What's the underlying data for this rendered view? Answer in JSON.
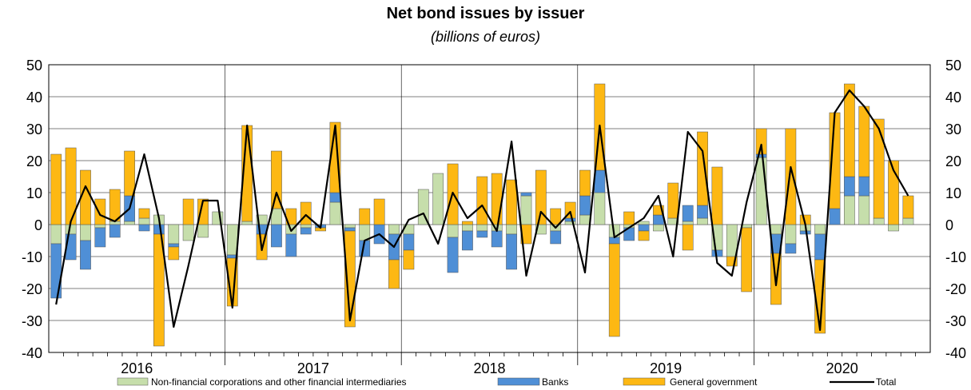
{
  "chart_data": {
    "type": "bar",
    "title": "Net bond issues by issuer",
    "subtitle": "(billions of euros)",
    "ylim": [
      -40,
      50
    ],
    "yticks": [
      -40,
      -30,
      -20,
      -10,
      0,
      10,
      20,
      30,
      40,
      50
    ],
    "year_labels": [
      "2016",
      "2017",
      "2018",
      "2019",
      "2020"
    ],
    "months_per_year": 12,
    "grid": true,
    "legend_position": "bottom",
    "stacked": true,
    "series": [
      {
        "name": "Non-financial corporations and other financial intermediaries",
        "color": "#c6deab",
        "values": [
          -6,
          -3,
          -5,
          -1,
          1,
          1,
          2,
          3,
          -6,
          -5,
          -4,
          4,
          -9.5,
          1,
          3,
          5,
          -3,
          -1,
          0,
          7,
          -1,
          -5,
          0,
          -3,
          -3,
          11,
          16,
          -4,
          -2,
          -2,
          -2,
          -3,
          9,
          -3,
          -2,
          1,
          3,
          10,
          -4,
          -1,
          1,
          -2,
          2,
          1,
          2,
          -8,
          -10,
          -1,
          21,
          -3,
          -6,
          -2,
          -3,
          0,
          9,
          9,
          2,
          -2,
          2
        ]
      },
      {
        "name": "Banks",
        "color": "#4f8fd6",
        "values": [
          -17,
          -8,
          -9,
          -6,
          -4,
          8,
          -2,
          -3,
          -1,
          0,
          0,
          0,
          -1,
          0,
          -3,
          -7,
          -7,
          -2,
          -1,
          3,
          -1,
          -5,
          -6,
          -8,
          -5,
          0,
          0,
          -11,
          -6,
          -2,
          -5,
          -11,
          1,
          0,
          -4,
          1,
          6,
          7,
          -2,
          -4,
          -2,
          3,
          0,
          5,
          4,
          -2,
          0,
          0,
          1,
          -6,
          -3,
          -1,
          -8,
          5,
          6,
          6,
          0,
          0,
          0
        ]
      },
      {
        "name": "General government",
        "color": "#fdb813",
        "values": [
          22,
          24,
          17,
          8,
          10,
          14,
          3,
          -35,
          -4,
          8,
          8,
          0,
          -15,
          30,
          -8,
          18,
          5,
          7,
          -1,
          22,
          -30,
          5,
          8,
          -9,
          -6,
          0,
          0,
          19,
          1,
          15,
          16,
          14,
          -6,
          17,
          5,
          5,
          8,
          27,
          -29,
          4,
          -3,
          3,
          11,
          -8,
          23,
          18,
          -3,
          -20,
          8,
          -16,
          30,
          3,
          -23,
          30,
          29,
          22,
          31,
          20,
          7
        ]
      },
      {
        "name": "Total",
        "color": "#000000",
        "values": [
          -25,
          1,
          12,
          3,
          1,
          5,
          22,
          2,
          -32,
          -13,
          7.5,
          7.5,
          -26,
          31,
          -8,
          10,
          -2,
          3,
          -1,
          31,
          -30,
          -5,
          -3,
          -7,
          1.5,
          3.5,
          -6,
          10,
          2,
          6,
          -2,
          26,
          -16,
          4,
          -1,
          4,
          -15,
          31,
          -4,
          -1,
          2,
          9,
          -10,
          29,
          23,
          -12,
          -16,
          7,
          25,
          -19,
          18,
          0,
          -33,
          35,
          42,
          37,
          30,
          17,
          9
        ]
      }
    ]
  }
}
